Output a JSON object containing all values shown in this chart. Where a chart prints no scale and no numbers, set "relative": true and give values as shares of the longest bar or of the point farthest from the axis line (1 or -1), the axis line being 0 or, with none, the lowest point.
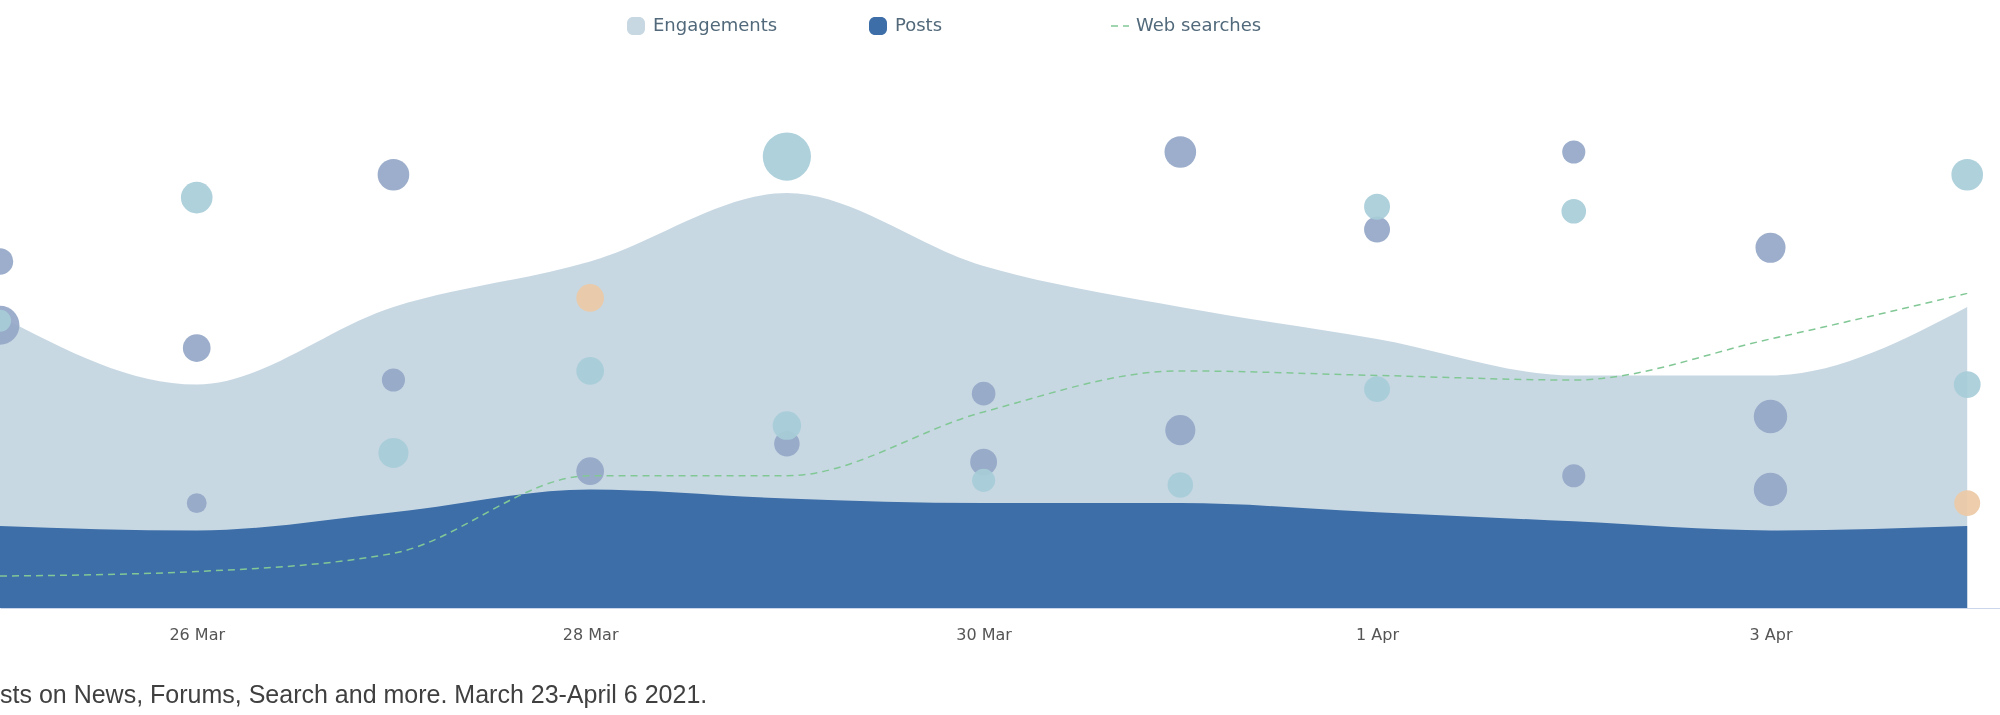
{
  "chart_data": {
    "type": "area",
    "relative": true,
    "legend": "top",
    "x": [
      "2021-03-25",
      "2021-03-26",
      "2021-03-27",
      "2021-03-28",
      "2021-03-29",
      "2021-03-30",
      "2021-03-31",
      "2021-04-01",
      "2021-04-02",
      "2021-04-03",
      "2021-04-04"
    ],
    "xlim": [
      "2021-03-25",
      "2021-04-04T04:00"
    ],
    "xticks": [
      {
        "value": "2021-03-26",
        "label": "26 Mar"
      },
      {
        "value": "2021-03-28",
        "label": "28 Mar"
      },
      {
        "value": "2021-03-30",
        "label": "30 Mar"
      },
      {
        "value": "2021-04-01",
        "label": "1 Apr"
      },
      {
        "value": "2021-04-03",
        "label": "3 Apr"
      }
    ],
    "series": [
      {
        "name": "Engagements",
        "color": "#c8d8e3",
        "values": [
          0.64,
          0.49,
          0.66,
          0.76,
          0.91,
          0.75,
          0.66,
          0.59,
          0.51,
          0.51,
          0.66
        ]
      },
      {
        "name": "Posts",
        "color": "#3d6ea8",
        "values": [
          0.18,
          0.17,
          0.21,
          0.26,
          0.24,
          0.23,
          0.23,
          0.21,
          0.19,
          0.17,
          0.18
        ]
      },
      {
        "type": "bubble",
        "color": "#94a7c7",
        "x": [
          "2021-03-25",
          "2021-03-25",
          "2021-03-26",
          "2021-03-26",
          "2021-03-27",
          "2021-03-27",
          "2021-03-28",
          "2021-03-29",
          "2021-03-30",
          "2021-03-30",
          "2021-03-31",
          "2021-03-31",
          "2021-04-01",
          "2021-04-02",
          "2021-04-02",
          "2021-04-03",
          "2021-04-03",
          "2021-04-03"
        ],
        "values": [
          0.76,
          0.62,
          0.57,
          0.23,
          0.95,
          0.5,
          0.3,
          0.36,
          0.47,
          0.32,
          1.0,
          0.39,
          0.83,
          1.0,
          0.29,
          0.79,
          0.42,
          0.26
        ],
        "sizes": [
          0.3,
          0.65,
          0.33,
          0.17,
          0.43,
          0.23,
          0.33,
          0.28,
          0.24,
          0.31,
          0.43,
          0.39,
          0.29,
          0.23,
          0.23,
          0.39,
          0.48,
          0.48
        ]
      },
      {
        "type": "bubble",
        "color": "#a7cdd8",
        "x": [
          "2021-03-25",
          "2021-03-26",
          "2021-03-27",
          "2021-03-28",
          "2021-03-29",
          "2021-03-29",
          "2021-03-30",
          "2021-03-31",
          "2021-04-01",
          "2021-04-01",
          "2021-04-02",
          "2021-04-04",
          "2021-04-04"
        ],
        "values": [
          0.63,
          0.9,
          0.34,
          0.52,
          0.99,
          0.4,
          0.28,
          0.27,
          0.88,
          0.48,
          0.87,
          0.95,
          0.49
        ],
        "sizes": [
          0.21,
          0.43,
          0.39,
          0.33,
          1,
          0.35,
          0.23,
          0.28,
          0.29,
          0.29,
          0.26,
          0.43,
          0.31
        ]
      },
      {
        "type": "bubble",
        "color": "#ecc9a5",
        "x": [
          "2021-03-28",
          "2021-04-04"
        ],
        "values": [
          0.68,
          0.23
        ],
        "sizes": [
          0.33,
          0.29
        ]
      },
      {
        "name": "Web searches",
        "type": "line",
        "color": "#82c896",
        "line_style": "dashed",
        "values": [
          0.07,
          0.08,
          0.12,
          0.29,
          0.29,
          0.43,
          0.52,
          0.51,
          0.5,
          0.59,
          0.69
        ]
      }
    ],
    "annotations": [
      "sts on News, Forums, Search and more. March 23-April 6 2021."
    ]
  }
}
